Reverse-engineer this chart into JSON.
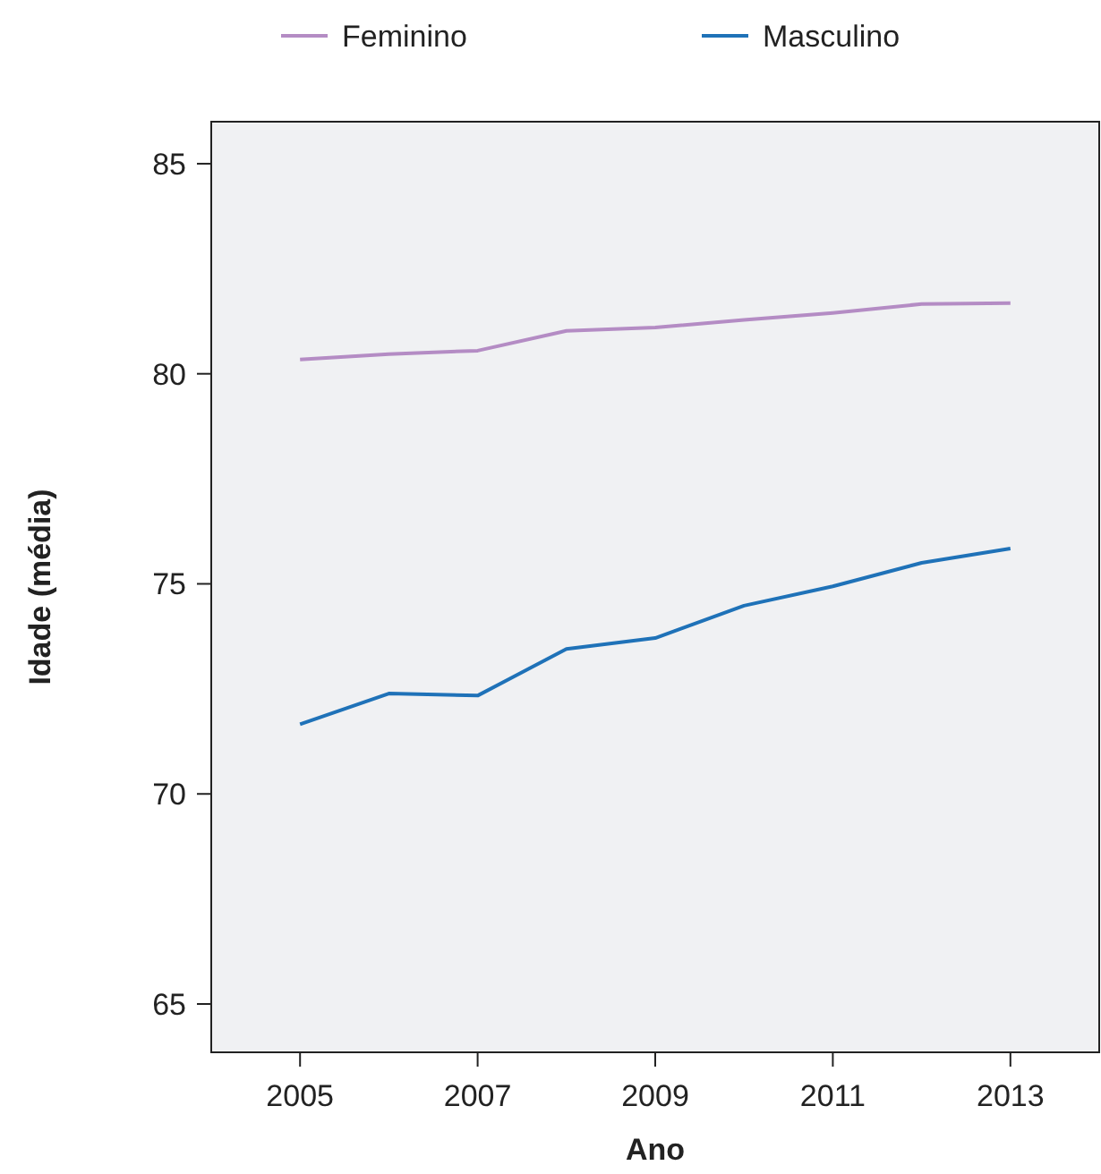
{
  "chart_data": {
    "type": "line",
    "xlabel": "Ano",
    "ylabel": "Idade (média)",
    "x": [
      2005,
      2006,
      2007,
      2008,
      2009,
      2010,
      2011,
      2012,
      2013
    ],
    "series": [
      {
        "name": "Feminino",
        "color": "#b48cc4",
        "values": [
          80.34,
          80.47,
          80.55,
          81.02,
          81.1,
          81.28,
          81.45,
          81.66,
          81.68
        ]
      },
      {
        "name": "Masculino",
        "color": "#1f72b8",
        "values": [
          71.66,
          72.39,
          72.34,
          73.45,
          73.71,
          74.48,
          74.94,
          75.5,
          75.84
        ]
      }
    ],
    "xlim": [
      2004,
      2014
    ],
    "xticks": [
      2005,
      2007,
      2009,
      2011,
      2013
    ],
    "ylim": [
      63.85,
      86
    ],
    "yticks": [
      65,
      70,
      75,
      80,
      85
    ],
    "grid": false,
    "legend": "top",
    "marker": "none",
    "line_style": "solid"
  }
}
